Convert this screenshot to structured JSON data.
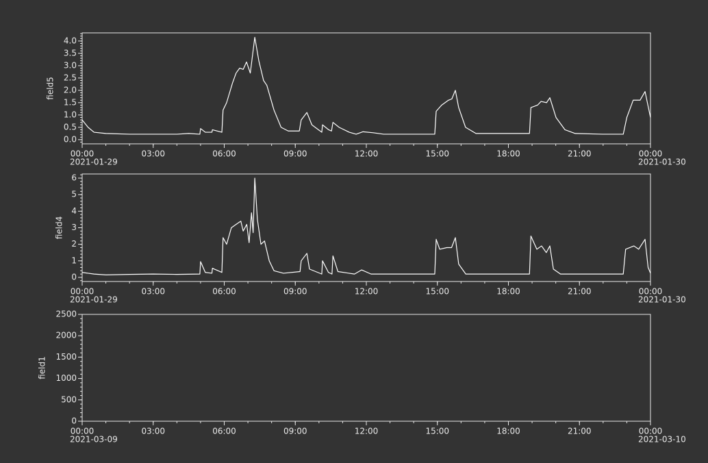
{
  "chart_data": [
    {
      "type": "line",
      "ylabel": "field5",
      "color": "#ffffff",
      "x": [
        0,
        0.25,
        0.5,
        1,
        2,
        3,
        4,
        4.5,
        4.97,
        5.0,
        5.2,
        5.48,
        5.5,
        5.9,
        5.95,
        6.1,
        6.35,
        6.5,
        6.65,
        6.8,
        6.94,
        7.1,
        7.29,
        7.46,
        7.66,
        7.8,
        8.1,
        8.4,
        8.7,
        9.17,
        9.25,
        9.49,
        9.7,
        9.98,
        10.12,
        10.15,
        10.41,
        10.53,
        10.59,
        10.85,
        11.28,
        11.57,
        11.86,
        12.29,
        12.73,
        13.88,
        14.89,
        14.95,
        15.18,
        15.47,
        15.61,
        15.76,
        15.9,
        16.19,
        16.63,
        17.94,
        18.89,
        18.95,
        19.23,
        19.38,
        19.61,
        19.75,
        20.01,
        20.39,
        20.82,
        21.98,
        22.85,
        23.0,
        23.27,
        23.56,
        23.77,
        24
      ],
      "values": [
        0.8,
        0.5,
        0.3,
        0.25,
        0.22,
        0.22,
        0.22,
        0.25,
        0.22,
        0.45,
        0.3,
        0.3,
        0.4,
        0.3,
        1.2,
        1.5,
        2.3,
        2.7,
        2.9,
        2.85,
        3.15,
        2.7,
        4.15,
        3.2,
        2.4,
        2.2,
        1.2,
        0.5,
        0.35,
        0.35,
        0.8,
        1.1,
        0.6,
        0.4,
        0.3,
        0.6,
        0.4,
        0.35,
        0.7,
        0.5,
        0.3,
        0.22,
        0.32,
        0.28,
        0.22,
        0.22,
        0.22,
        1.15,
        1.4,
        1.6,
        1.65,
        2.0,
        1.3,
        0.5,
        0.25,
        0.25,
        0.25,
        1.3,
        1.4,
        1.55,
        1.5,
        1.7,
        0.9,
        0.4,
        0.25,
        0.22,
        0.22,
        0.9,
        1.6,
        1.6,
        1.95,
        0.9
      ],
      "xlim": [
        0,
        24
      ],
      "ylim": [
        -0.17,
        4.33
      ],
      "xticks": [
        {
          "value": 0,
          "label": "00:00"
        },
        {
          "value": 3,
          "label": "03:00"
        },
        {
          "value": 6,
          "label": "06:00"
        },
        {
          "value": 9,
          "label": "09:00"
        },
        {
          "value": 12,
          "label": "12:00"
        },
        {
          "value": 15,
          "label": "15:00"
        },
        {
          "value": 18,
          "label": "18:00"
        },
        {
          "value": 21,
          "label": "21:00"
        },
        {
          "value": 24,
          "label": "00:00"
        }
      ],
      "xdate_labels": [
        {
          "value": 0,
          "label": "2021-01-29"
        },
        {
          "value": 24,
          "label": "2021-01-30"
        }
      ],
      "yticks": [
        {
          "value": 0,
          "label": "0.0"
        },
        0.5,
        {
          "value": 1,
          "label": "1.0"
        },
        1.5,
        {
          "value": 2,
          "label": "2.0"
        },
        2.5,
        {
          "value": 3,
          "label": "3.0"
        },
        3.5,
        {
          "value": 4,
          "label": "4.0"
        }
      ],
      "xminor_step": 1,
      "yminor_step": 0.1
    },
    {
      "type": "line",
      "ylabel": "field4",
      "color": "#ffffff",
      "x": [
        0,
        0.5,
        1,
        2,
        3,
        4,
        4.97,
        5.0,
        5.2,
        5.48,
        5.5,
        5.9,
        5.95,
        6.1,
        6.3,
        6.5,
        6.7,
        6.8,
        6.95,
        7.05,
        7.15,
        7.22,
        7.29,
        7.4,
        7.55,
        7.7,
        7.9,
        8.1,
        8.5,
        9.2,
        9.25,
        9.49,
        9.6,
        10.12,
        10.15,
        10.4,
        10.55,
        10.59,
        10.8,
        11.5,
        11.8,
        12.2,
        14.89,
        14.95,
        15.1,
        15.4,
        15.6,
        15.76,
        15.9,
        16.2,
        18.89,
        18.95,
        19.2,
        19.4,
        19.6,
        19.75,
        19.9,
        20.2,
        22.85,
        22.95,
        23.3,
        23.5,
        23.77,
        23.9,
        24
      ],
      "values": [
        0.3,
        0.2,
        0.15,
        0.18,
        0.2,
        0.18,
        0.2,
        0.95,
        0.3,
        0.25,
        0.55,
        0.3,
        2.4,
        2.0,
        3.0,
        3.2,
        3.4,
        2.8,
        3.2,
        2.1,
        3.9,
        2.7,
        6.0,
        3.5,
        2.0,
        2.2,
        1.0,
        0.4,
        0.25,
        0.35,
        1.0,
        1.45,
        0.5,
        0.2,
        1.0,
        0.3,
        0.2,
        1.3,
        0.35,
        0.2,
        0.45,
        0.2,
        0.2,
        2.3,
        1.7,
        1.8,
        1.8,
        2.4,
        0.8,
        0.2,
        0.2,
        2.5,
        1.7,
        1.9,
        1.5,
        1.9,
        0.5,
        0.2,
        0.2,
        1.7,
        1.9,
        1.7,
        2.3,
        0.6,
        0.25
      ],
      "xlim": [
        0,
        24
      ],
      "ylim": [
        -0.25,
        6.25
      ],
      "xticks": [
        {
          "value": 0,
          "label": "00:00"
        },
        {
          "value": 3,
          "label": "03:00"
        },
        {
          "value": 6,
          "label": "06:00"
        },
        {
          "value": 9,
          "label": "09:00"
        },
        {
          "value": 12,
          "label": "12:00"
        },
        {
          "value": 15,
          "label": "15:00"
        },
        {
          "value": 18,
          "label": "18:00"
        },
        {
          "value": 21,
          "label": "21:00"
        },
        {
          "value": 24,
          "label": "00:00"
        }
      ],
      "xdate_labels": [
        {
          "value": 0,
          "label": "2021-01-29"
        },
        {
          "value": 24,
          "label": "2021-01-30"
        }
      ],
      "yticks": [
        0,
        1,
        2,
        3,
        4,
        5,
        6
      ],
      "xminor_step": 1,
      "yminor_step": 0.2
    },
    {
      "type": "line",
      "ylabel": "field1",
      "color": "#ffffff",
      "x": [],
      "values": [],
      "xlim": [
        0,
        24
      ],
      "ylim": [
        0,
        2500
      ],
      "xticks": [
        {
          "value": 0,
          "label": "00:00"
        },
        {
          "value": 3,
          "label": "03:00"
        },
        {
          "value": 6,
          "label": "06:00"
        },
        {
          "value": 9,
          "label": "09:00"
        },
        {
          "value": 12,
          "label": "12:00"
        },
        {
          "value": 15,
          "label": "15:00"
        },
        {
          "value": 18,
          "label": "18:00"
        },
        {
          "value": 21,
          "label": "21:00"
        },
        {
          "value": 24,
          "label": "00:00"
        }
      ],
      "xdate_labels": [
        {
          "value": 0,
          "label": "2021-03-09"
        },
        {
          "value": 24,
          "label": "2021-03-10"
        }
      ],
      "yticks": [
        0,
        500,
        1000,
        1500,
        2000,
        2500
      ],
      "xminor_step": 1,
      "yminor_step": 100
    }
  ]
}
